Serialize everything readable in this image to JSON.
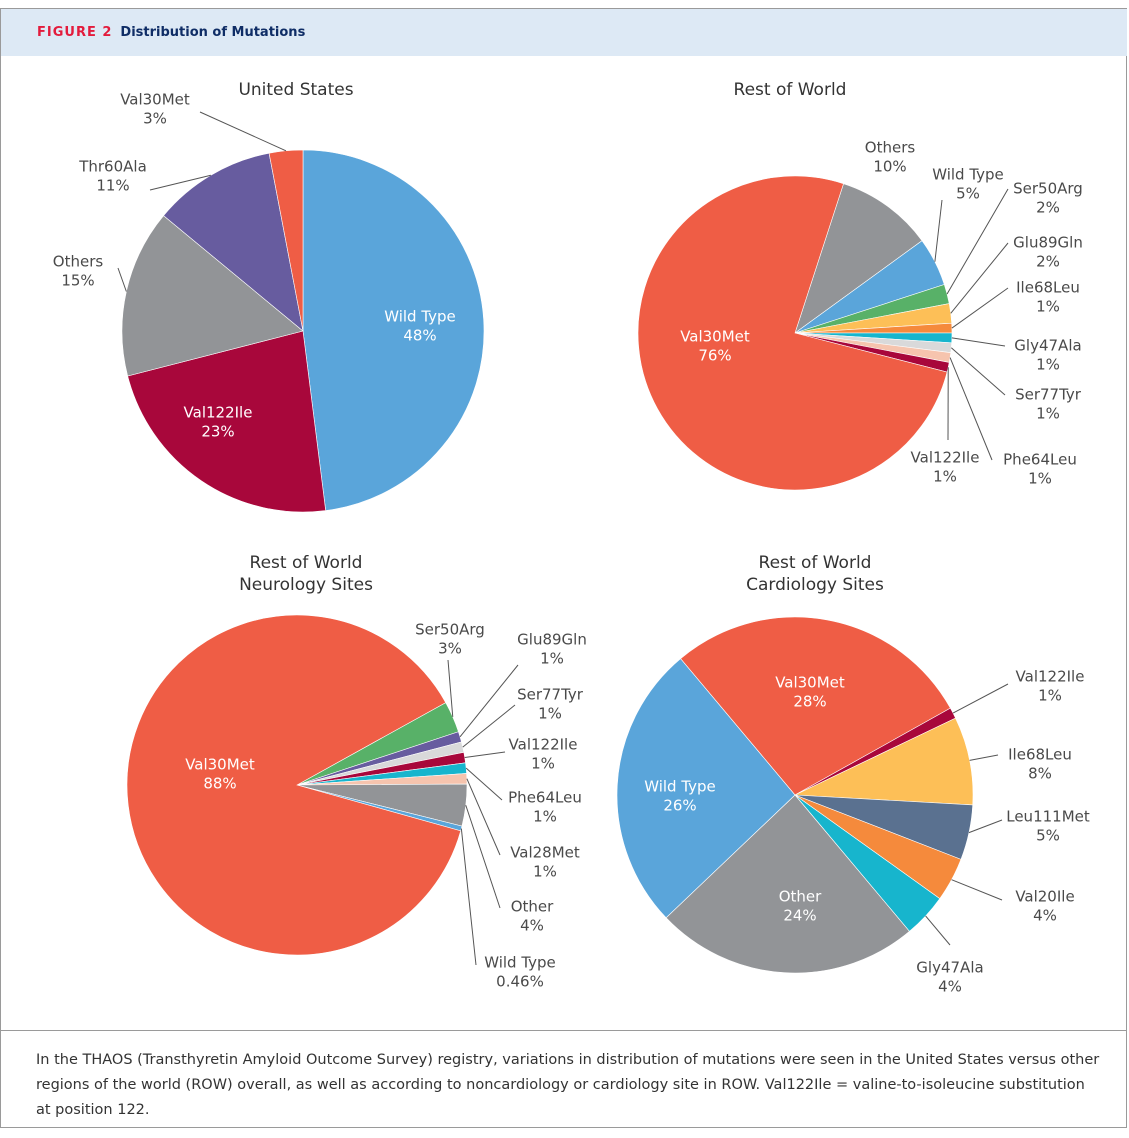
{
  "figure_label": "FIGURE 2",
  "figure_title": "Distribution of Mutations",
  "caption": "In the THAOS (Transthyretin Amyloid Outcome Survey) registry, variations in distribution of mutations were seen in the United States versus other regions of the world (ROW) overall, as well as according to noncardiology or cardiology site in ROW. Val122Ile = valine-to-isoleucine substitution at position 122.",
  "chart_data": [
    {
      "type": "pie",
      "title": [
        "United States"
      ],
      "categories": [
        "Wild Type",
        "Val122Ile",
        "Others",
        "Thr60Ala",
        "Val30Met"
      ],
      "values": [
        48,
        23,
        15,
        11,
        3
      ],
      "value_labels": [
        "48%",
        "23%",
        "15%",
        "11%",
        "3%"
      ],
      "colors": [
        "#5aa5da",
        "#a8073b",
        "#929497",
        "#675c9f",
        "#ef5d45"
      ]
    },
    {
      "type": "pie",
      "title": [
        "Rest of World"
      ],
      "categories": [
        "Others",
        "Wild Type",
        "Ser50Arg",
        "Glu89Gln",
        "Ile68Leu",
        "Gly47Ala",
        "Ser77Tyr",
        "Phe64Leu",
        "Val122Ile",
        "Val30Met"
      ],
      "values": [
        10,
        5,
        2,
        2,
        1,
        1,
        1,
        1,
        1,
        76
      ],
      "value_labels": [
        "10%",
        "5%",
        "2%",
        "2%",
        "1%",
        "1%",
        "1%",
        "1%",
        "1%",
        "76%"
      ],
      "colors": [
        "#929497",
        "#5aa5da",
        "#58b168",
        "#fdbf57",
        "#f58a3c",
        "#17b5cd",
        "#d9d9da",
        "#f6c4ae",
        "#a8073b",
        "#ef5d45"
      ]
    },
    {
      "type": "pie",
      "title": [
        "Rest of World",
        "Neurology Sites"
      ],
      "categories": [
        "Ser50Arg",
        "Glu89Gln",
        "Ser77Tyr",
        "Val122Ile",
        "Phe64Leu",
        "Val28Met",
        "Other",
        "Wild Type",
        "Val30Met"
      ],
      "values": [
        3,
        1,
        1,
        1,
        1,
        1,
        4,
        0.46,
        88
      ],
      "value_labels": [
        "3%",
        "1%",
        "1%",
        "1%",
        "1%",
        "1%",
        "4%",
        "0.46%",
        "88%"
      ],
      "colors": [
        "#58b168",
        "#675c9f",
        "#d9d9da",
        "#a8073b",
        "#17b5cd",
        "#f6c4ae",
        "#929497",
        "#5aa5da",
        "#ef5d45"
      ]
    },
    {
      "type": "pie",
      "title": [
        "Rest of World",
        "Cardiology Sites"
      ],
      "categories": [
        "Val30Met",
        "Val122Ile",
        "Ile68Leu",
        "Leu111Met",
        "Val20Ile",
        "Gly47Ala",
        "Other",
        "Wild Type"
      ],
      "values": [
        28,
        1,
        8,
        5,
        4,
        4,
        24,
        26
      ],
      "value_labels": [
        "28%",
        "1%",
        "8%",
        "5%",
        "4%",
        "4%",
        "24%",
        "26%"
      ],
      "colors": [
        "#ef5d45",
        "#a8073b",
        "#fdbf57",
        "#5a7190",
        "#f58a3c",
        "#17b5cd",
        "#929497",
        "#5aa5da"
      ]
    }
  ]
}
